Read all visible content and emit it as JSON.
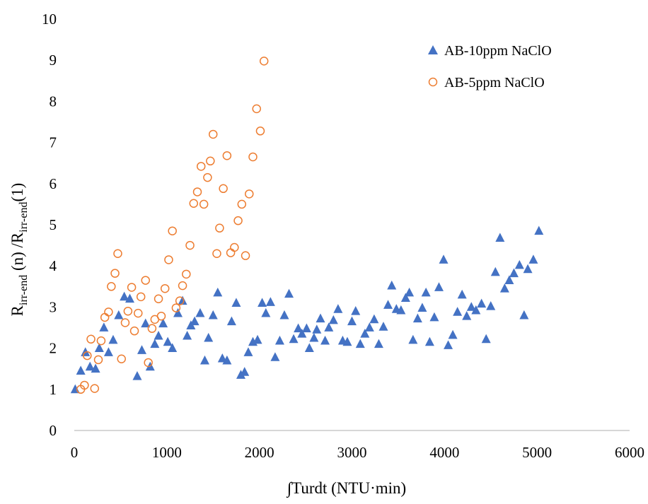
{
  "chart_data": {
    "type": "scatter",
    "xlabel": "∫Turdt (NTU·min)",
    "ylabel": {
      "base1": "R",
      "sub1": "irr-end",
      "mid": " (n) /",
      "base2": "R",
      "sub2": "irr-end",
      "tail": "(1)"
    },
    "xlim": [
      0,
      6000
    ],
    "ylim": [
      0,
      10
    ],
    "xticks": [
      "0",
      "1000",
      "2000",
      "3000",
      "4000",
      "5000",
      "6000"
    ],
    "yticks": [
      "0",
      "1",
      "2",
      "3",
      "4",
      "5",
      "6",
      "7",
      "8",
      "9",
      "10"
    ],
    "grid": false,
    "legend_position": "top-right",
    "series": [
      {
        "name": "AB-10ppm NaClO",
        "marker": "filled-triangle",
        "color": "#4472C4",
        "points": [
          [
            10,
            1.0
          ],
          [
            70,
            1.45
          ],
          [
            120,
            1.9
          ],
          [
            170,
            1.55
          ],
          [
            230,
            1.5
          ],
          [
            270,
            2.0
          ],
          [
            320,
            2.5
          ],
          [
            370,
            1.9
          ],
          [
            420,
            2.2
          ],
          [
            480,
            2.8
          ],
          [
            540,
            3.25
          ],
          [
            600,
            3.2
          ],
          [
            680,
            1.32
          ],
          [
            730,
            1.95
          ],
          [
            770,
            2.6
          ],
          [
            820,
            1.55
          ],
          [
            870,
            2.1
          ],
          [
            910,
            2.3
          ],
          [
            960,
            2.6
          ],
          [
            1010,
            2.15
          ],
          [
            1060,
            2.0
          ],
          [
            1120,
            2.85
          ],
          [
            1170,
            3.15
          ],
          [
            1220,
            2.3
          ],
          [
            1260,
            2.55
          ],
          [
            1300,
            2.65
          ],
          [
            1360,
            2.85
          ],
          [
            1410,
            1.7
          ],
          [
            1450,
            2.25
          ],
          [
            1500,
            2.8
          ],
          [
            1550,
            3.35
          ],
          [
            1600,
            1.75
          ],
          [
            1650,
            1.7
          ],
          [
            1700,
            2.65
          ],
          [
            1750,
            3.1
          ],
          [
            1800,
            1.35
          ],
          [
            1840,
            1.42
          ],
          [
            1880,
            1.9
          ],
          [
            1930,
            2.15
          ],
          [
            1980,
            2.2
          ],
          [
            2030,
            3.1
          ],
          [
            2070,
            2.85
          ],
          [
            2120,
            3.12
          ],
          [
            2170,
            1.78
          ],
          [
            2220,
            2.18
          ],
          [
            2270,
            2.8
          ],
          [
            2320,
            3.32
          ],
          [
            2370,
            2.22
          ],
          [
            2420,
            2.48
          ],
          [
            2460,
            2.35
          ],
          [
            2510,
            2.48
          ],
          [
            2540,
            2.0
          ],
          [
            2590,
            2.25
          ],
          [
            2620,
            2.45
          ],
          [
            2660,
            2.72
          ],
          [
            2710,
            2.18
          ],
          [
            2750,
            2.5
          ],
          [
            2800,
            2.68
          ],
          [
            2850,
            2.95
          ],
          [
            2900,
            2.18
          ],
          [
            2950,
            2.15
          ],
          [
            3000,
            2.65
          ],
          [
            3040,
            2.9
          ],
          [
            3090,
            2.1
          ],
          [
            3140,
            2.35
          ],
          [
            3190,
            2.5
          ],
          [
            3240,
            2.7
          ],
          [
            3290,
            2.1
          ],
          [
            3340,
            2.52
          ],
          [
            3390,
            3.05
          ],
          [
            3430,
            3.52
          ],
          [
            3480,
            2.95
          ],
          [
            3530,
            2.92
          ],
          [
            3580,
            3.22
          ],
          [
            3620,
            3.35
          ],
          [
            3660,
            2.2
          ],
          [
            3710,
            2.72
          ],
          [
            3760,
            2.98
          ],
          [
            3800,
            3.35
          ],
          [
            3840,
            2.15
          ],
          [
            3890,
            2.75
          ],
          [
            3940,
            3.48
          ],
          [
            3990,
            4.15
          ],
          [
            4040,
            2.07
          ],
          [
            4090,
            2.32
          ],
          [
            4140,
            2.88
          ],
          [
            4190,
            3.3
          ],
          [
            4240,
            2.78
          ],
          [
            4290,
            3.0
          ],
          [
            4340,
            2.92
          ],
          [
            4400,
            3.08
          ],
          [
            4450,
            2.22
          ],
          [
            4500,
            3.02
          ],
          [
            4550,
            3.85
          ],
          [
            4600,
            4.68
          ],
          [
            4650,
            3.45
          ],
          [
            4700,
            3.65
          ],
          [
            4750,
            3.82
          ],
          [
            4810,
            4.02
          ],
          [
            4860,
            2.8
          ],
          [
            4900,
            3.92
          ],
          [
            4960,
            4.15
          ],
          [
            5020,
            4.85
          ]
        ]
      },
      {
        "name": "AB-5ppm NaClO",
        "marker": "open-circle",
        "color": "#ED7D31",
        "points": [
          [
            70,
            1.0
          ],
          [
            110,
            1.1
          ],
          [
            140,
            1.82
          ],
          [
            180,
            2.22
          ],
          [
            220,
            1.02
          ],
          [
            260,
            1.72
          ],
          [
            290,
            2.18
          ],
          [
            330,
            2.75
          ],
          [
            370,
            2.88
          ],
          [
            400,
            3.5
          ],
          [
            440,
            3.82
          ],
          [
            470,
            4.3
          ],
          [
            510,
            1.74
          ],
          [
            550,
            2.62
          ],
          [
            580,
            2.9
          ],
          [
            620,
            3.48
          ],
          [
            650,
            2.42
          ],
          [
            690,
            2.85
          ],
          [
            720,
            3.25
          ],
          [
            770,
            3.65
          ],
          [
            800,
            1.65
          ],
          [
            840,
            2.48
          ],
          [
            870,
            2.7
          ],
          [
            910,
            3.2
          ],
          [
            940,
            2.78
          ],
          [
            980,
            3.45
          ],
          [
            1020,
            4.15
          ],
          [
            1060,
            4.85
          ],
          [
            1100,
            2.98
          ],
          [
            1140,
            3.15
          ],
          [
            1170,
            3.52
          ],
          [
            1210,
            3.8
          ],
          [
            1250,
            4.5
          ],
          [
            1290,
            5.52
          ],
          [
            1330,
            5.8
          ],
          [
            1370,
            6.42
          ],
          [
            1400,
            5.5
          ],
          [
            1440,
            6.15
          ],
          [
            1470,
            6.55
          ],
          [
            1500,
            7.2
          ],
          [
            1540,
            4.3
          ],
          [
            1570,
            4.92
          ],
          [
            1610,
            5.88
          ],
          [
            1650,
            6.68
          ],
          [
            1690,
            4.32
          ],
          [
            1730,
            4.45
          ],
          [
            1770,
            5.1
          ],
          [
            1810,
            5.5
          ],
          [
            1850,
            4.25
          ],
          [
            1890,
            5.75
          ],
          [
            1930,
            6.65
          ],
          [
            1970,
            7.82
          ],
          [
            2010,
            7.28
          ],
          [
            2050,
            8.98
          ]
        ]
      }
    ]
  }
}
